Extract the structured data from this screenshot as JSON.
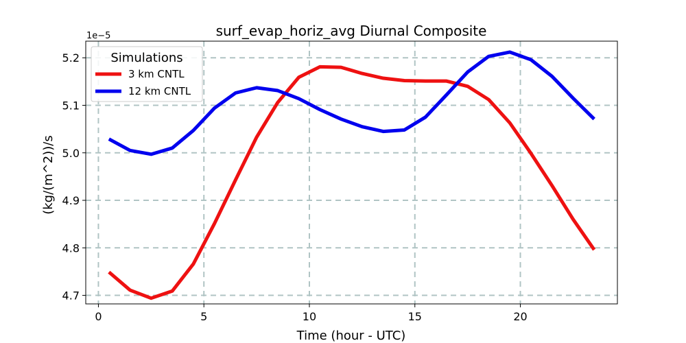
{
  "chart_data": {
    "type": "line",
    "title": "surf_evap_horiz_avg Diurnal Composite",
    "xlabel": "Time (hour - UTC)",
    "ylabel": "(kg/(m^2))/s",
    "y_offset_label": "1e−5",
    "xlim": [
      -0.6,
      24.6
    ],
    "ylim": [
      4.682,
      5.235
    ],
    "x_ticks": [
      0,
      5,
      10,
      15,
      20
    ],
    "y_ticks": [
      4.7,
      4.8,
      4.9,
      5.0,
      5.1,
      5.2
    ],
    "y_tick_labels": [
      "4.7",
      "4.8",
      "4.9",
      "5.0",
      "5.1",
      "5.2"
    ],
    "grid": true,
    "legend": {
      "title": "Simulations",
      "placement": "top-left"
    },
    "x": [
      0.5,
      1.5,
      2.5,
      3.5,
      4.5,
      5.5,
      6.5,
      7.5,
      8.5,
      9.5,
      10.5,
      11.5,
      12.5,
      13.5,
      14.5,
      15.5,
      16.5,
      17.5,
      18.5,
      19.5,
      20.5,
      21.5,
      22.5,
      23.5
    ],
    "series": [
      {
        "name": "3 km CNTL",
        "color": "#ee1111",
        "values": [
          4.749,
          4.711,
          4.694,
          4.709,
          4.766,
          4.851,
          4.943,
          5.033,
          5.106,
          5.159,
          5.181,
          5.18,
          5.167,
          5.157,
          5.152,
          5.151,
          5.151,
          5.14,
          5.112,
          5.063,
          4.999,
          4.931,
          4.86,
          4.796
        ]
      },
      {
        "name": "12 km CNTL",
        "color": "#0000ee",
        "values": [
          5.029,
          5.005,
          4.997,
          5.01,
          5.047,
          5.094,
          5.126,
          5.137,
          5.131,
          5.114,
          5.091,
          5.071,
          5.055,
          5.045,
          5.048,
          5.075,
          5.122,
          5.17,
          5.203,
          5.212,
          5.196,
          5.161,
          5.115,
          5.071
        ]
      }
    ]
  }
}
